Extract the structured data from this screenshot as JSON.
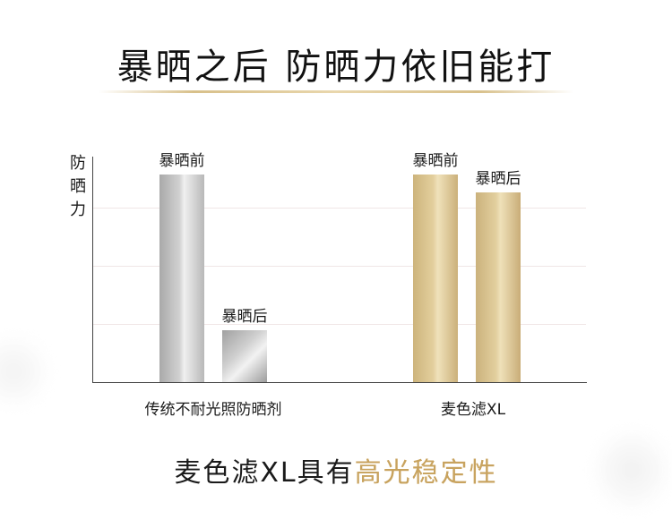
{
  "title": "暴晒之后 防晒力依旧能打",
  "footer": {
    "prefix": "麦色滤XL具有",
    "highlight": "高光稳定性"
  },
  "colors": {
    "silver_bar": "#b9b9b9",
    "gold_bar": "#d9c38e",
    "highlight": "#c8a35f"
  },
  "chart_data": {
    "type": "bar",
    "ylabel": "防晒力",
    "xlabel": "",
    "ylim": [
      0,
      100
    ],
    "grid": true,
    "categories": [
      "传统不耐光照防晒剂",
      "麦色滤XL"
    ],
    "series": [
      {
        "name": "暴晒前",
        "values": [
          92,
          92
        ]
      },
      {
        "name": "暴晒后",
        "values": [
          23,
          84
        ]
      }
    ]
  }
}
